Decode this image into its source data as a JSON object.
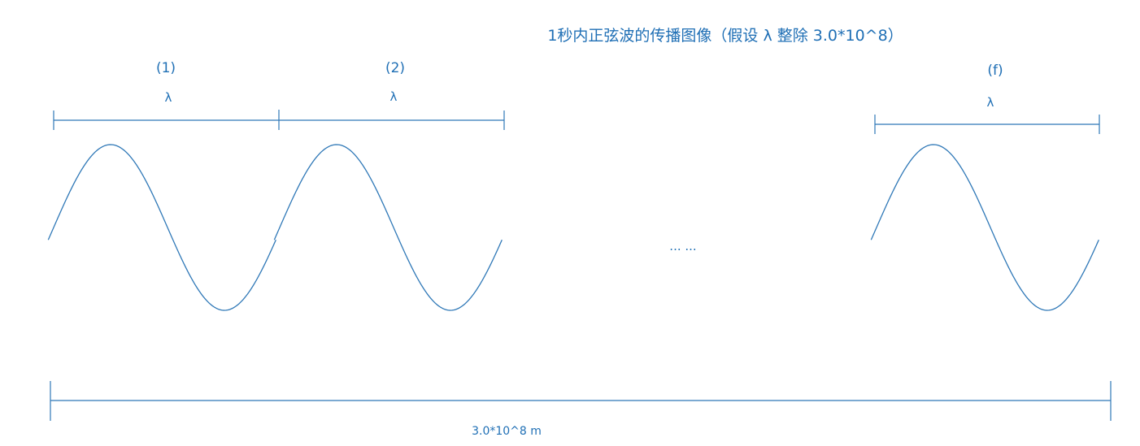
{
  "title": "1秒内正弦波的传播图像（假设 λ 整除 3.0*10^8）",
  "wave_labels": {
    "first": "(1)",
    "second": "(2)",
    "last": "(f)"
  },
  "wavelength_symbol": "λ",
  "ellipsis": "... ...",
  "total_distance_label": "3.0*10^8 m",
  "colors": {
    "line": "#2f78b7",
    "text": "#1f6fb5"
  }
}
